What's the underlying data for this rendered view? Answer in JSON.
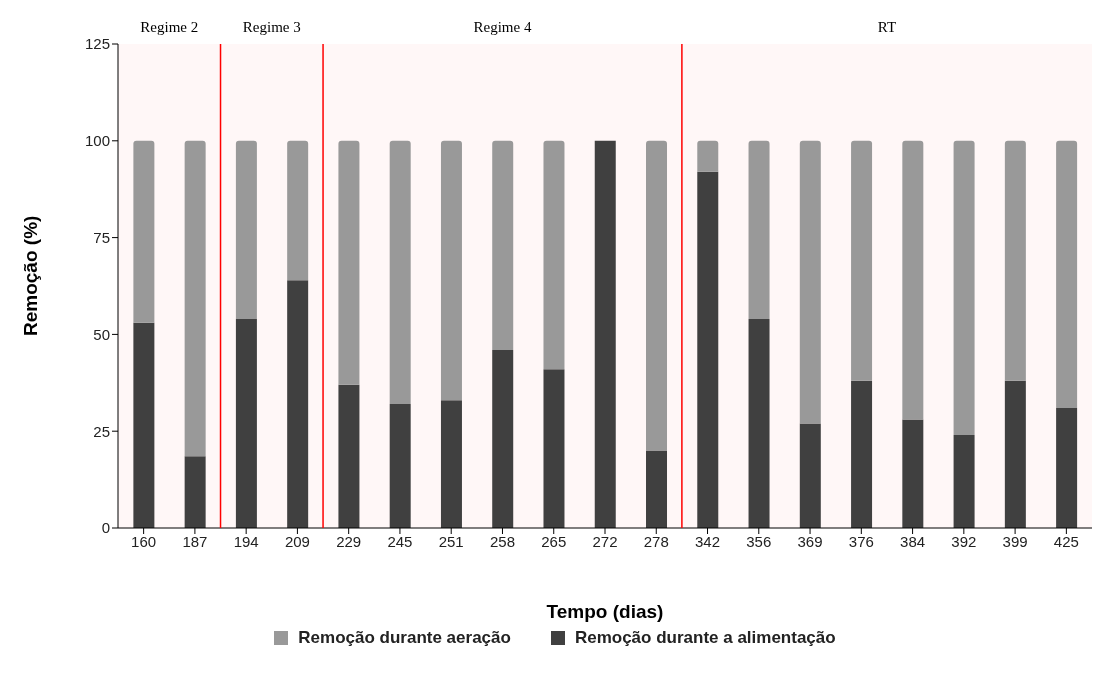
{
  "chart_data": {
    "type": "bar",
    "stacked": true,
    "xlabel": "Tempo (dias)",
    "ylabel": "Remoção (%)",
    "categories": [
      "160",
      "187",
      "194",
      "209",
      "229",
      "245",
      "251",
      "258",
      "265",
      "272",
      "278",
      "342",
      "356",
      "369",
      "376",
      "384",
      "392",
      "399",
      "425"
    ],
    "series": [
      {
        "name": "Remoção durante a alimentação",
        "color": "#404040",
        "values": [
          53,
          18.5,
          54,
          64,
          37,
          32,
          33,
          46,
          41,
          100,
          20,
          92,
          54,
          27,
          38,
          28,
          24,
          38,
          31
        ]
      },
      {
        "name": "Remoção durante aeração",
        "color": "#999999",
        "values": [
          47,
          81.5,
          46,
          36,
          63,
          68,
          67,
          54,
          59,
          0,
          80,
          8,
          46,
          73,
          62,
          72,
          76,
          62,
          69
        ]
      }
    ],
    "ylim": [
      0,
      125
    ],
    "yticks": [
      0,
      25,
      50,
      75,
      100,
      125
    ],
    "grid": false,
    "legend": "bottom",
    "bands": [
      {
        "axis": "x",
        "from": "160",
        "to": "187",
        "label": "Regime 2",
        "color": "#ff0000"
      },
      {
        "axis": "x",
        "from": "194",
        "to": "209",
        "label": "Regime 3",
        "color": "#ff0000"
      },
      {
        "axis": "x",
        "from": "229",
        "to": "278",
        "label": "Regime 4",
        "color": "#ff0000"
      },
      {
        "axis": "x",
        "from": "342",
        "to": "425",
        "label": "RT",
        "color": "#ff0000"
      }
    ]
  }
}
